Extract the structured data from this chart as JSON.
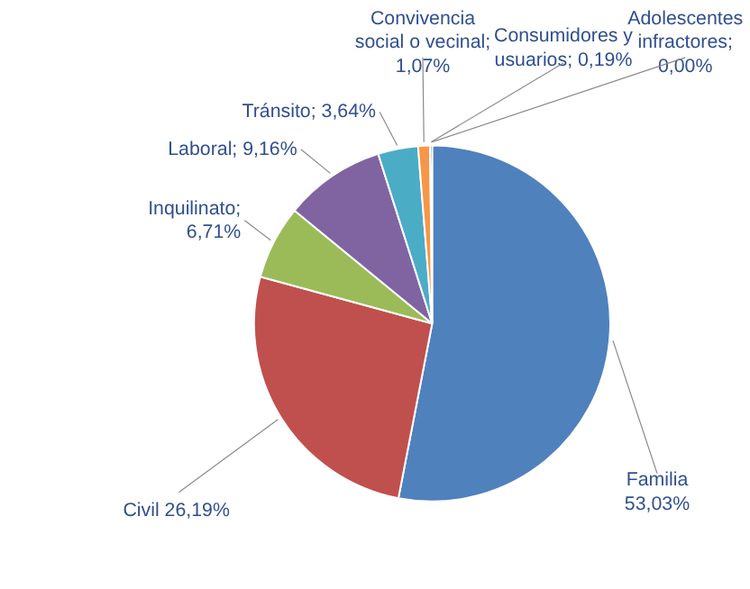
{
  "chart_data": {
    "type": "pie",
    "categories": [
      "Familia",
      "Civil",
      "Inquilinato",
      "Laboral",
      "Tránsito",
      "Convivencia social o vecinal",
      "Consumidores y usuarios",
      "Adolescentes infractores"
    ],
    "values": [
      53.03,
      26.19,
      6.71,
      9.16,
      3.64,
      1.07,
      0.19,
      0.0
    ],
    "colors": [
      "#4f81bd",
      "#c0504d",
      "#9bbb59",
      "#8064a2",
      "#4bacc6",
      "#f79646",
      "#2c4d75",
      "#772c2a"
    ],
    "value_labels": [
      "53,03%",
      "26,19%",
      "; 6,71%",
      "; 9,16%",
      "; 3,64%",
      "; 1,07%",
      "; 0,19%",
      "; 0,00%"
    ]
  }
}
